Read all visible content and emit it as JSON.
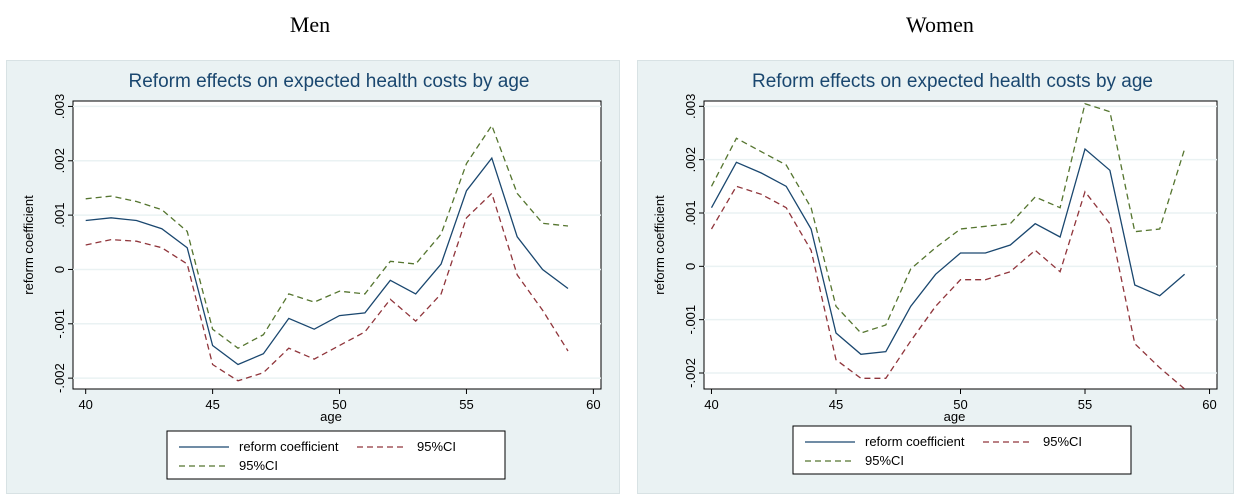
{
  "headers": {
    "left": "Men",
    "right": "Women"
  },
  "colors": {
    "coef": "#1a476f",
    "ci_low": "#90353b",
    "ci_high": "#55752f",
    "grid": "#eaf2f3",
    "plot_bg": "#ffffff",
    "outer_bg": "#eaf2f3"
  },
  "chart_data": [
    {
      "type": "line",
      "title": "Reform effects on expected health costs by age",
      "xlabel": "age",
      "ylabel": "reform coefficient",
      "xlim": [
        39.5,
        60.3
      ],
      "ylim": [
        -0.0022,
        0.0031
      ],
      "xticks": [
        40,
        45,
        50,
        55,
        60
      ],
      "yticks": [
        -0.002,
        -0.001,
        0,
        0.001,
        0.002,
        0.003
      ],
      "ytick_labels": [
        "-.002",
        "-.001",
        "0",
        ".001",
        ".002",
        ".003"
      ],
      "legend": {
        "position": "bottom",
        "entries": [
          "reform coefficient",
          "95%CI",
          "95%CI"
        ]
      },
      "x": [
        40,
        41,
        42,
        43,
        44,
        45,
        46,
        47,
        48,
        49,
        50,
        51,
        52,
        53,
        54,
        55,
        56,
        57,
        58,
        59
      ],
      "series": [
        {
          "name": "reform coefficient",
          "style": "solid",
          "color": "#1a476f",
          "values": [
            0.0009,
            0.00095,
            0.0009,
            0.00075,
            0.0004,
            -0.0014,
            -0.00175,
            -0.00155,
            -0.0009,
            -0.0011,
            -0.00085,
            -0.0008,
            -0.0002,
            -0.00045,
            0.0001,
            0.00145,
            0.00205,
            0.0006,
            0.0,
            -0.00035
          ]
        },
        {
          "name": "95%CI",
          "style": "dashed",
          "color": "#90353b",
          "values": [
            0.00045,
            0.00055,
            0.00052,
            0.0004,
            0.0001,
            -0.00175,
            -0.00205,
            -0.0019,
            -0.00145,
            -0.00165,
            -0.0014,
            -0.00115,
            -0.00055,
            -0.00095,
            -0.00045,
            0.00095,
            0.0014,
            -0.0001,
            -0.00075,
            -0.0015
          ]
        },
        {
          "name": "95%CI",
          "style": "dashed",
          "color": "#55752f",
          "values": [
            0.0013,
            0.00135,
            0.00125,
            0.0011,
            0.0007,
            -0.0011,
            -0.00145,
            -0.0012,
            -0.00045,
            -0.0006,
            -0.0004,
            -0.00045,
            0.00015,
            0.0001,
            0.00065,
            0.00195,
            0.00265,
            0.0014,
            0.00085,
            0.0008
          ]
        }
      ]
    },
    {
      "type": "line",
      "title": "Reform effects on expected health costs by age",
      "xlabel": "age",
      "ylabel": "reform coefficient",
      "xlim": [
        39.7,
        60.3
      ],
      "ylim": [
        -0.0023,
        0.0031
      ],
      "xticks": [
        40,
        45,
        50,
        55,
        60
      ],
      "yticks": [
        -0.002,
        -0.001,
        0,
        0.001,
        0.002,
        0.003
      ],
      "ytick_labels": [
        "-.002",
        "-.001",
        "0",
        ".001",
        ".002",
        ".003"
      ],
      "legend": {
        "position": "bottom",
        "entries": [
          "reform coefficient",
          "95%CI",
          "95%CI"
        ]
      },
      "x": [
        40,
        41,
        42,
        43,
        44,
        45,
        46,
        47,
        48,
        49,
        50,
        51,
        52,
        53,
        54,
        55,
        56,
        57,
        58,
        59
      ],
      "series": [
        {
          "name": "reform coefficient",
          "style": "solid",
          "color": "#1a476f",
          "values": [
            0.0011,
            0.00195,
            0.00175,
            0.0015,
            0.0007,
            -0.00125,
            -0.00165,
            -0.0016,
            -0.00075,
            -0.00015,
            0.00025,
            0.00025,
            0.0004,
            0.0008,
            0.00055,
            0.0022,
            0.0018,
            -0.00035,
            -0.00055,
            -0.00015
          ]
        },
        {
          "name": "95%CI",
          "style": "dashed",
          "color": "#90353b",
          "values": [
            0.0007,
            0.0015,
            0.00135,
            0.0011,
            0.0003,
            -0.00175,
            -0.0021,
            -0.0021,
            -0.0014,
            -0.00075,
            -0.00025,
            -0.00025,
            -0.0001,
            0.0003,
            -0.0001,
            0.0014,
            0.0008,
            -0.00145,
            -0.0019,
            -0.0023
          ]
        },
        {
          "name": "95%CI",
          "style": "dashed",
          "color": "#55752f",
          "values": [
            0.0015,
            0.0024,
            0.00215,
            0.0019,
            0.0011,
            -0.00075,
            -0.00125,
            -0.0011,
            -5e-05,
            0.00035,
            0.0007,
            0.00075,
            0.0008,
            0.0013,
            0.0011,
            0.00305,
            0.0029,
            0.00065,
            0.0007,
            0.0022
          ]
        }
      ]
    }
  ]
}
